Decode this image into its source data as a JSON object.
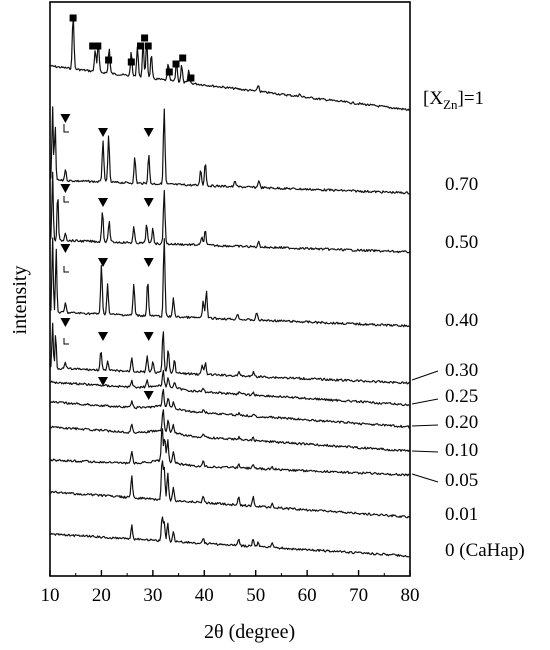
{
  "chart_data": {
    "type": "line",
    "title": "",
    "xlabel": "2θ (degree)",
    "ylabel": "intensity",
    "xlim": [
      10,
      80
    ],
    "x_ticks": [
      10,
      20,
      30,
      40,
      50,
      60,
      70,
      80
    ],
    "y_ticks_shown": false,
    "grid": false,
    "series": [
      {
        "name": "[X_Zn]=1",
        "label_main": "[X",
        "label_sub": "Zn",
        "label_tail": "]=1",
        "peaks": [
          [
            14.5,
            0.98
          ],
          [
            18.8,
            0.4
          ],
          [
            19.4,
            0.52
          ],
          [
            21.5,
            0.45
          ],
          [
            25.8,
            0.42
          ],
          [
            27.0,
            0.55
          ],
          [
            28.1,
            0.58
          ],
          [
            28.8,
            0.66
          ],
          [
            29.7,
            0.42
          ],
          [
            33.0,
            0.3
          ],
          [
            34.6,
            0.35
          ],
          [
            35.6,
            0.3
          ],
          [
            37.0,
            0.22
          ],
          [
            50.5,
            0.12
          ],
          [
            58.5,
            0.05
          ]
        ],
        "markers": [
          [
            14.5,
            "square"
          ],
          [
            18.3,
            "square"
          ],
          [
            19.3,
            "square"
          ],
          [
            21.4,
            "square"
          ],
          [
            25.8,
            "square"
          ],
          [
            27.6,
            "square"
          ],
          [
            28.4,
            "square"
          ],
          [
            29.1,
            "square"
          ],
          [
            33.2,
            "square"
          ],
          [
            34.5,
            "square"
          ],
          [
            35.8,
            "square"
          ],
          [
            37.4,
            "square"
          ]
        ]
      },
      {
        "name": "0.70",
        "peaks": [
          [
            10.5,
            0.98
          ],
          [
            11.0,
            0.75
          ],
          [
            13.0,
            0.15
          ],
          [
            20.3,
            0.55
          ],
          [
            21.4,
            0.6
          ],
          [
            26.5,
            0.34
          ],
          [
            29.2,
            0.38
          ],
          [
            32.2,
            1.0
          ],
          [
            39.3,
            0.22
          ],
          [
            40.2,
            0.32
          ],
          [
            46.0,
            0.08
          ],
          [
            50.6,
            0.1
          ]
        ],
        "markers": [
          [
            13.0,
            "triangle"
          ],
          [
            20.3,
            "triangle"
          ],
          [
            29.2,
            "triangle"
          ]
        ]
      },
      {
        "name": "0.50",
        "peaks": [
          [
            10.5,
            0.98
          ],
          [
            11.5,
            0.7
          ],
          [
            13.0,
            0.12
          ],
          [
            20.2,
            0.45
          ],
          [
            21.5,
            0.3
          ],
          [
            26.3,
            0.22
          ],
          [
            28.8,
            0.28
          ],
          [
            30.0,
            0.22
          ],
          [
            32.2,
            0.78
          ],
          [
            39.5,
            0.12
          ],
          [
            40.2,
            0.22
          ],
          [
            50.6,
            0.08
          ]
        ],
        "markers": [
          [
            13.0,
            "triangle"
          ],
          [
            20.3,
            "triangle"
          ],
          [
            29.2,
            "triangle"
          ]
        ]
      },
      {
        "name": "0.40",
        "peaks": [
          [
            10.5,
            0.98
          ],
          [
            11.2,
            0.82
          ],
          [
            13.0,
            0.12
          ],
          [
            20.0,
            0.62
          ],
          [
            21.2,
            0.38
          ],
          [
            26.3,
            0.4
          ],
          [
            29.0,
            0.45
          ],
          [
            32.2,
            1.0
          ],
          [
            34.0,
            0.25
          ],
          [
            39.8,
            0.22
          ],
          [
            40.4,
            0.35
          ],
          [
            46.5,
            0.08
          ],
          [
            50.2,
            0.1
          ]
        ],
        "markers": [
          [
            13.0,
            "triangle"
          ],
          [
            20.3,
            "triangle"
          ],
          [
            29.2,
            "triangle"
          ]
        ]
      },
      {
        "name": "0.30",
        "peaks": [
          [
            10.5,
            0.95
          ],
          [
            11.1,
            0.75
          ],
          [
            13.0,
            0.12
          ],
          [
            19.9,
            0.4
          ],
          [
            21.2,
            0.18
          ],
          [
            25.9,
            0.3
          ],
          [
            28.9,
            0.35
          ],
          [
            30.0,
            0.22
          ],
          [
            32.0,
            0.92
          ],
          [
            33.0,
            0.5
          ],
          [
            34.2,
            0.3
          ],
          [
            39.6,
            0.2
          ],
          [
            40.2,
            0.25
          ],
          [
            46.8,
            0.08
          ],
          [
            49.6,
            0.1
          ]
        ],
        "markers": [
          [
            13.0,
            "triangle"
          ],
          [
            20.3,
            "triangle"
          ],
          [
            29.2,
            "triangle"
          ]
        ]
      },
      {
        "name": "0.25",
        "peaks": [
          [
            25.9,
            0.2
          ],
          [
            28.9,
            0.22
          ],
          [
            32.0,
            0.5
          ],
          [
            33.0,
            0.28
          ],
          [
            34.2,
            0.18
          ],
          [
            39.8,
            0.1
          ],
          [
            46.8,
            0.06
          ],
          [
            49.5,
            0.07
          ]
        ],
        "markers": [
          [
            20.3,
            "triangle"
          ],
          [
            29.2,
            "triangle"
          ]
        ]
      },
      {
        "name": "0.20",
        "peaks": [
          [
            25.9,
            0.2
          ],
          [
            32.0,
            0.55
          ],
          [
            33.0,
            0.3
          ],
          [
            34.0,
            0.18
          ],
          [
            39.8,
            0.1
          ],
          [
            46.8,
            0.06
          ],
          [
            49.5,
            0.07
          ]
        ],
        "markers": []
      },
      {
        "name": "0.10",
        "peaks": [
          [
            25.9,
            0.22
          ],
          [
            32.0,
            0.62
          ],
          [
            33.0,
            0.32
          ],
          [
            34.0,
            0.2
          ],
          [
            39.8,
            0.1
          ],
          [
            46.8,
            0.07
          ],
          [
            49.5,
            0.08
          ]
        ],
        "markers": []
      },
      {
        "name": "0.05",
        "peaks": [
          [
            25.9,
            0.3
          ],
          [
            31.8,
            0.85
          ],
          [
            32.3,
            0.6
          ],
          [
            32.9,
            0.52
          ],
          [
            34.0,
            0.28
          ],
          [
            39.8,
            0.12
          ],
          [
            46.7,
            0.1
          ],
          [
            49.5,
            0.12
          ],
          [
            53.2,
            0.06
          ]
        ],
        "markers": []
      },
      {
        "name": "0.01",
        "peaks": [
          [
            25.9,
            0.55
          ],
          [
            31.8,
            1.0
          ],
          [
            32.2,
            0.8
          ],
          [
            32.9,
            0.7
          ],
          [
            34.0,
            0.35
          ],
          [
            39.8,
            0.16
          ],
          [
            46.7,
            0.2
          ],
          [
            49.5,
            0.25
          ],
          [
            53.2,
            0.1
          ]
        ],
        "markers": []
      },
      {
        "name": "0 (CaHap)",
        "peaks": [
          [
            25.9,
            0.55
          ],
          [
            31.8,
            1.0
          ],
          [
            32.2,
            0.8
          ],
          [
            32.9,
            0.72
          ],
          [
            34.0,
            0.4
          ],
          [
            39.8,
            0.2
          ],
          [
            46.7,
            0.28
          ],
          [
            49.5,
            0.32
          ],
          [
            50.5,
            0.2
          ],
          [
            53.2,
            0.18
          ],
          [
            64.0,
            0.05
          ]
        ],
        "markers": []
      }
    ]
  }
}
